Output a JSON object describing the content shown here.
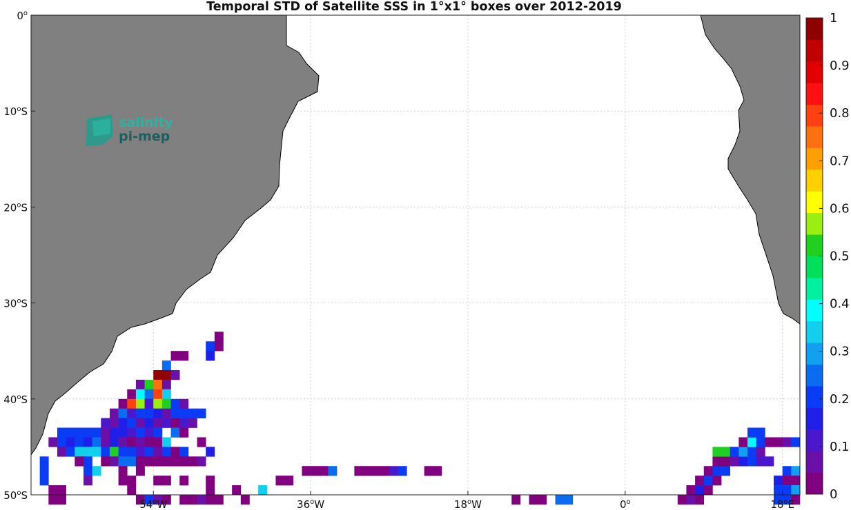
{
  "chart_data": {
    "type": "heatmap",
    "title": "Temporal STD of Satellite SSS in 1°x1° boxes over 2012-2019",
    "x_ticks": [
      {
        "value": -54,
        "label": "54",
        "suffix": "W"
      },
      {
        "value": -36,
        "label": "36",
        "suffix": "W"
      },
      {
        "value": -18,
        "label": "18",
        "suffix": "W"
      },
      {
        "value": 0,
        "label": "0",
        "suffix": ""
      },
      {
        "value": 18,
        "label": "18",
        "suffix": "E"
      }
    ],
    "y_ticks": [
      {
        "value": 0,
        "label": "0",
        "suffix": ""
      },
      {
        "value": -10,
        "label": "10",
        "suffix": "S"
      },
      {
        "value": -20,
        "label": "20",
        "suffix": "S"
      },
      {
        "value": -30,
        "label": "30",
        "suffix": "S"
      },
      {
        "value": -40,
        "label": "40",
        "suffix": "S"
      },
      {
        "value": -50,
        "label": "50",
        "suffix": "S"
      }
    ],
    "xlim": [
      -68,
      20
    ],
    "ylim": [
      -50,
      0
    ],
    "grid": true,
    "colorbar": {
      "range": [
        0,
        1
      ],
      "ticks": [
        0,
        0.1,
        0.2,
        0.3,
        0.4,
        0.5,
        0.6,
        0.7,
        0.8,
        0.9,
        1
      ],
      "tick_labels": [
        "0",
        "0.1",
        "0.2",
        "0.3",
        "0.4",
        "0.5",
        "0.6",
        "0.7",
        "0.8",
        "0.9",
        "1"
      ],
      "colors": [
        "#800080",
        "#6a0fa8",
        "#4b17cc",
        "#1f1fe8",
        "#0a3cf5",
        "#0a6cf0",
        "#12a0f0",
        "#12cfee",
        "#00ffff",
        "#00f0a0",
        "#00e05a",
        "#20d020",
        "#9aee10",
        "#ffff00",
        "#ffd000",
        "#ffa000",
        "#ff7010",
        "#ff4010",
        "#ff1010",
        "#e00000",
        "#c00000",
        "#900000"
      ]
    },
    "land_color": "#808080",
    "logo": {
      "line1": "salinity",
      "line2": "pi-mep"
    },
    "cells": [
      {
        "lon": -47,
        "lat": -33,
        "v": 0.02
      },
      {
        "lon": -48,
        "lat": -34,
        "v": 0.2
      },
      {
        "lon": -47,
        "lat": -34,
        "v": 0.02
      },
      {
        "lon": -48,
        "lat": -35,
        "v": 0.18
      },
      {
        "lon": -51,
        "lat": -35,
        "v": 0.02
      },
      {
        "lon": -52,
        "lat": -35,
        "v": 0.02
      },
      {
        "lon": -53,
        "lat": -36,
        "v": 0.25
      },
      {
        "lon": -54,
        "lat": -37,
        "v": 0.96
      },
      {
        "lon": -53,
        "lat": -37,
        "v": 0.96
      },
      {
        "lon": -52,
        "lat": -37,
        "v": 0.05
      },
      {
        "lon": -56,
        "lat": -38,
        "v": 0.08
      },
      {
        "lon": -55,
        "lat": -38,
        "v": 0.52
      },
      {
        "lon": -54,
        "lat": -38,
        "v": 0.73
      },
      {
        "lon": -53,
        "lat": -38,
        "v": 0.05
      },
      {
        "lon": -57,
        "lat": -39,
        "v": 0.02
      },
      {
        "lon": -56,
        "lat": -39,
        "v": 0.37
      },
      {
        "lon": -55,
        "lat": -39,
        "v": 0.25
      },
      {
        "lon": -54,
        "lat": -39,
        "v": 0.81
      },
      {
        "lon": -53,
        "lat": -39,
        "v": 0.35
      },
      {
        "lon": -58,
        "lat": -40,
        "v": 0.02
      },
      {
        "lon": -57,
        "lat": -40,
        "v": 0.8
      },
      {
        "lon": -56,
        "lat": -40,
        "v": 0.55
      },
      {
        "lon": -55,
        "lat": -40,
        "v": 0.1
      },
      {
        "lon": -54,
        "lat": -40,
        "v": 0.55
      },
      {
        "lon": -53,
        "lat": -40,
        "v": 0.52
      },
      {
        "lon": -52,
        "lat": -40,
        "v": 0.22
      },
      {
        "lon": -51,
        "lat": -40,
        "v": 0.05
      },
      {
        "lon": -59,
        "lat": -41,
        "v": 0.08
      },
      {
        "lon": -58,
        "lat": -41,
        "v": 0.25
      },
      {
        "lon": -57,
        "lat": -41,
        "v": 0.12
      },
      {
        "lon": -56,
        "lat": -41,
        "v": 0.22
      },
      {
        "lon": -55,
        "lat": -41,
        "v": 0.2
      },
      {
        "lon": -54,
        "lat": -41,
        "v": 0.15
      },
      {
        "lon": -53,
        "lat": -41,
        "v": 0.08
      },
      {
        "lon": -52,
        "lat": -41,
        "v": 0.2
      },
      {
        "lon": -51,
        "lat": -41,
        "v": 0.2
      },
      {
        "lon": -50,
        "lat": -41,
        "v": 0.2
      },
      {
        "lon": -49,
        "lat": -41,
        "v": 0.2
      },
      {
        "lon": -60,
        "lat": -42,
        "v": 0.12
      },
      {
        "lon": -59,
        "lat": -42,
        "v": 0.08
      },
      {
        "lon": -58,
        "lat": -42,
        "v": 0.15
      },
      {
        "lon": -57,
        "lat": -42,
        "v": 0.2
      },
      {
        "lon": -56,
        "lat": -42,
        "v": 0.08
      },
      {
        "lon": -55,
        "lat": -42,
        "v": 0.15
      },
      {
        "lon": -54,
        "lat": -42,
        "v": 0.08
      },
      {
        "lon": -53,
        "lat": -42,
        "v": 0.12
      },
      {
        "lon": -52,
        "lat": -42,
        "v": 0.02
      },
      {
        "lon": -51,
        "lat": -42,
        "v": 0.12
      },
      {
        "lon": -50,
        "lat": -42,
        "v": 0.08
      },
      {
        "lon": -65,
        "lat": -43,
        "v": 0.22
      },
      {
        "lon": -64,
        "lat": -43,
        "v": 0.2
      },
      {
        "lon": -63,
        "lat": -43,
        "v": 0.2
      },
      {
        "lon": -62,
        "lat": -43,
        "v": 0.2
      },
      {
        "lon": -61,
        "lat": -43,
        "v": 0.2
      },
      {
        "lon": -60,
        "lat": -43,
        "v": 0.08
      },
      {
        "lon": -59,
        "lat": -43,
        "v": 0.15
      },
      {
        "lon": -58,
        "lat": -43,
        "v": 0.15
      },
      {
        "lon": -57,
        "lat": -43,
        "v": 0.12
      },
      {
        "lon": -56,
        "lat": -43,
        "v": 0.2
      },
      {
        "lon": -55,
        "lat": -43,
        "v": 0.12
      },
      {
        "lon": -54,
        "lat": -43,
        "v": 0.2
      },
      {
        "lon": -52,
        "lat": -43,
        "v": 0.25
      },
      {
        "lon": -51,
        "lat": -43,
        "v": 0.02
      },
      {
        "lon": -66,
        "lat": -44,
        "v": 0.08
      },
      {
        "lon": -65,
        "lat": -44,
        "v": 0.2
      },
      {
        "lon": -64,
        "lat": -44,
        "v": 0.15
      },
      {
        "lon": -63,
        "lat": -44,
        "v": 0.2
      },
      {
        "lon": -62,
        "lat": -44,
        "v": 0.15
      },
      {
        "lon": -61,
        "lat": -44,
        "v": 0.25
      },
      {
        "lon": -60,
        "lat": -44,
        "v": 0.08
      },
      {
        "lon": -59,
        "lat": -44,
        "v": 0.15
      },
      {
        "lon": -58,
        "lat": -44,
        "v": 0.08
      },
      {
        "lon": -57,
        "lat": -44,
        "v": 0.02
      },
      {
        "lon": -56,
        "lat": -44,
        "v": 0.08
      },
      {
        "lon": -55,
        "lat": -44,
        "v": 0.02
      },
      {
        "lon": -54,
        "lat": -44,
        "v": 0.02
      },
      {
        "lon": -53,
        "lat": -44,
        "v": 0.35
      },
      {
        "lon": -49,
        "lat": -44,
        "v": 0.02
      },
      {
        "lon": -65,
        "lat": -45,
        "v": 0.08
      },
      {
        "lon": -64,
        "lat": -45,
        "v": 0.2
      },
      {
        "lon": -63,
        "lat": -45,
        "v": 0.35
      },
      {
        "lon": -62,
        "lat": -45,
        "v": 0.35
      },
      {
        "lon": -61,
        "lat": -45,
        "v": 0.35
      },
      {
        "lon": -60,
        "lat": -45,
        "v": 0.2
      },
      {
        "lon": -59,
        "lat": -45,
        "v": 0.5
      },
      {
        "lon": -58,
        "lat": -45,
        "v": 0.2
      },
      {
        "lon": -57,
        "lat": -45,
        "v": 0.2
      },
      {
        "lon": -56,
        "lat": -45,
        "v": 0.12
      },
      {
        "lon": -55,
        "lat": -45,
        "v": 0.2
      },
      {
        "lon": -54,
        "lat": -45,
        "v": 0.08
      },
      {
        "lon": -53,
        "lat": -45,
        "v": 0.2
      },
      {
        "lon": -52,
        "lat": -45,
        "v": 0.02
      },
      {
        "lon": -51,
        "lat": -45,
        "v": 0.2
      },
      {
        "lon": -48,
        "lat": -45,
        "v": 0.15
      },
      {
        "lon": -67,
        "lat": -46,
        "v": 0.2
      },
      {
        "lon": -63,
        "lat": -46,
        "v": 0.02
      },
      {
        "lon": -62,
        "lat": -46,
        "v": 0.2
      },
      {
        "lon": -60,
        "lat": -46,
        "v": 0.02
      },
      {
        "lon": -59,
        "lat": -46,
        "v": 0.08
      },
      {
        "lon": -58,
        "lat": -46,
        "v": 0.25
      },
      {
        "lon": -57,
        "lat": -46,
        "v": 0.25
      },
      {
        "lon": -56,
        "lat": -46,
        "v": 0.02
      },
      {
        "lon": -55,
        "lat": -46,
        "v": 0.02
      },
      {
        "lon": -54,
        "lat": -46,
        "v": 0.02
      },
      {
        "lon": -53,
        "lat": -46,
        "v": 0.02
      },
      {
        "lon": -52,
        "lat": -46,
        "v": 0.02
      },
      {
        "lon": -51,
        "lat": -46,
        "v": 0.02
      },
      {
        "lon": -50,
        "lat": -46,
        "v": 0.02
      },
      {
        "lon": -49,
        "lat": -46,
        "v": 0.08
      },
      {
        "lon": -67,
        "lat": -47,
        "v": 0.2
      },
      {
        "lon": -62,
        "lat": -47,
        "v": 0.2
      },
      {
        "lon": -61,
        "lat": -47,
        "v": 0.35
      },
      {
        "lon": -58,
        "lat": -47,
        "v": 0.02
      },
      {
        "lon": -56,
        "lat": -47,
        "v": 0.02
      },
      {
        "lon": -37,
        "lat": -47,
        "v": 0.02
      },
      {
        "lon": -36,
        "lat": -47,
        "v": 0.02
      },
      {
        "lon": -35,
        "lat": -47,
        "v": 0.02
      },
      {
        "lon": -34,
        "lat": -47,
        "v": 0.25
      },
      {
        "lon": -31,
        "lat": -47,
        "v": 0.02
      },
      {
        "lon": -30,
        "lat": -47,
        "v": 0.02
      },
      {
        "lon": -29,
        "lat": -47,
        "v": 0.02
      },
      {
        "lon": -28,
        "lat": -47,
        "v": 0.02
      },
      {
        "lon": -27,
        "lat": -47,
        "v": 0.12
      },
      {
        "lon": -26,
        "lat": -47,
        "v": 0.2
      },
      {
        "lon": -23,
        "lat": -47,
        "v": 0.02
      },
      {
        "lon": -22,
        "lat": -47,
        "v": 0.02
      },
      {
        "lon": -67,
        "lat": -48,
        "v": 0.2
      },
      {
        "lon": -62,
        "lat": -48,
        "v": 0.08
      },
      {
        "lon": -58,
        "lat": -48,
        "v": 0.02
      },
      {
        "lon": -57,
        "lat": -48,
        "v": 0.02
      },
      {
        "lon": -54,
        "lat": -48,
        "v": 0.02
      },
      {
        "lon": -53,
        "lat": -48,
        "v": 0.02
      },
      {
        "lon": -51,
        "lat": -48,
        "v": 0.02
      },
      {
        "lon": -48,
        "lat": -48,
        "v": 0.02
      },
      {
        "lon": -40,
        "lat": -48,
        "v": 0.02
      },
      {
        "lon": -39,
        "lat": -48,
        "v": 0.02
      },
      {
        "lon": -66,
        "lat": -49,
        "v": 0.02
      },
      {
        "lon": -65,
        "lat": -49,
        "v": 0.02
      },
      {
        "lon": -57,
        "lat": -49,
        "v": 0.02
      },
      {
        "lon": -48,
        "lat": -49,
        "v": 0.02
      },
      {
        "lon": -45,
        "lat": -49,
        "v": 0.02
      },
      {
        "lon": -42,
        "lat": -49,
        "v": 0.32
      },
      {
        "lon": -66,
        "lat": -50,
        "v": 0.02
      },
      {
        "lon": -65,
        "lat": -50,
        "v": 0.02
      },
      {
        "lon": -56,
        "lat": -50,
        "v": 0.02
      },
      {
        "lon": -55,
        "lat": -50,
        "v": 0.2
      },
      {
        "lon": -54,
        "lat": -50,
        "v": 0.08
      },
      {
        "lon": -53,
        "lat": -50,
        "v": 0.02
      },
      {
        "lon": -51,
        "lat": -50,
        "v": 0.02
      },
      {
        "lon": -50,
        "lat": -50,
        "v": 0.02
      },
      {
        "lon": -49,
        "lat": -50,
        "v": 0.08
      },
      {
        "lon": -48,
        "lat": -50,
        "v": 0.02
      },
      {
        "lon": -47,
        "lat": -50,
        "v": 0.02
      },
      {
        "lon": -44,
        "lat": -50,
        "v": 0.02
      },
      {
        "lon": -13,
        "lat": -50,
        "v": 0.02
      },
      {
        "lon": -11,
        "lat": -50,
        "v": 0.02
      },
      {
        "lon": -10,
        "lat": -50,
        "v": 0.02
      },
      {
        "lon": -8,
        "lat": -50,
        "v": 0.25
      },
      {
        "lon": -7,
        "lat": -50,
        "v": 0.25
      },
      {
        "lon": 6,
        "lat": -50,
        "v": 0.02
      },
      {
        "lon": 7,
        "lat": -50,
        "v": 0.08
      },
      {
        "lon": 8,
        "lat": -50,
        "v": 0.02
      },
      {
        "lon": 7,
        "lat": -49,
        "v": 0.02
      },
      {
        "lon": 8,
        "lat": -49,
        "v": 0.15
      },
      {
        "lon": 9,
        "lat": -49,
        "v": 0.02
      },
      {
        "lon": 8,
        "lat": -48,
        "v": 0.02
      },
      {
        "lon": 9,
        "lat": -48,
        "v": 0.2
      },
      {
        "lon": 10,
        "lat": -48,
        "v": 0.02
      },
      {
        "lon": 9,
        "lat": -47,
        "v": 0.02
      },
      {
        "lon": 10,
        "lat": -47,
        "v": 0.2
      },
      {
        "lon": 11,
        "lat": -47,
        "v": 0.2
      },
      {
        "lon": 10,
        "lat": -46,
        "v": 0.02
      },
      {
        "lon": 11,
        "lat": -46,
        "v": 0.02
      },
      {
        "lon": 12,
        "lat": -46,
        "v": 0.08
      },
      {
        "lon": 13,
        "lat": -46,
        "v": 0.15
      },
      {
        "lon": 14,
        "lat": -46,
        "v": 0.2
      },
      {
        "lon": 15,
        "lat": -46,
        "v": 0.12
      },
      {
        "lon": 16,
        "lat": -46,
        "v": 0.12
      },
      {
        "lon": 10,
        "lat": -45,
        "v": 0.52
      },
      {
        "lon": 11,
        "lat": -45,
        "v": 0.52
      },
      {
        "lon": 12,
        "lat": -45,
        "v": 0.2
      },
      {
        "lon": 13,
        "lat": -45,
        "v": 0.3
      },
      {
        "lon": 14,
        "lat": -45,
        "v": 0.2
      },
      {
        "lon": 15,
        "lat": -45,
        "v": 0.05
      },
      {
        "lon": 13,
        "lat": -44,
        "v": 0.02
      },
      {
        "lon": 14,
        "lat": -44,
        "v": 0.38
      },
      {
        "lon": 15,
        "lat": -44,
        "v": 0.2
      },
      {
        "lon": 16,
        "lat": -44,
        "v": 0.02
      },
      {
        "lon": 17,
        "lat": -44,
        "v": 0.02
      },
      {
        "lon": 18,
        "lat": -44,
        "v": 0.08
      },
      {
        "lon": 19,
        "lat": -44,
        "v": 0.2
      },
      {
        "lon": 14,
        "lat": -43,
        "v": 0.2
      },
      {
        "lon": 15,
        "lat": -43,
        "v": 0.2
      },
      {
        "lon": 18,
        "lat": -47,
        "v": 0.2
      },
      {
        "lon": 19,
        "lat": -47,
        "v": 0.3
      },
      {
        "lon": 17,
        "lat": -48,
        "v": 0.15
      },
      {
        "lon": 18,
        "lat": -48,
        "v": 0.02
      },
      {
        "lon": 19,
        "lat": -48,
        "v": 0.02
      },
      {
        "lon": 17,
        "lat": -49,
        "v": 0.2
      },
      {
        "lon": 18,
        "lat": -49,
        "v": 0.2
      },
      {
        "lon": 19,
        "lat": -49,
        "v": 0.3
      },
      {
        "lon": 17,
        "lat": -50,
        "v": 0.2
      },
      {
        "lon": 18,
        "lat": -50,
        "v": 0.2
      },
      {
        "lon": 19,
        "lat": -50,
        "v": 0.02
      }
    ]
  }
}
